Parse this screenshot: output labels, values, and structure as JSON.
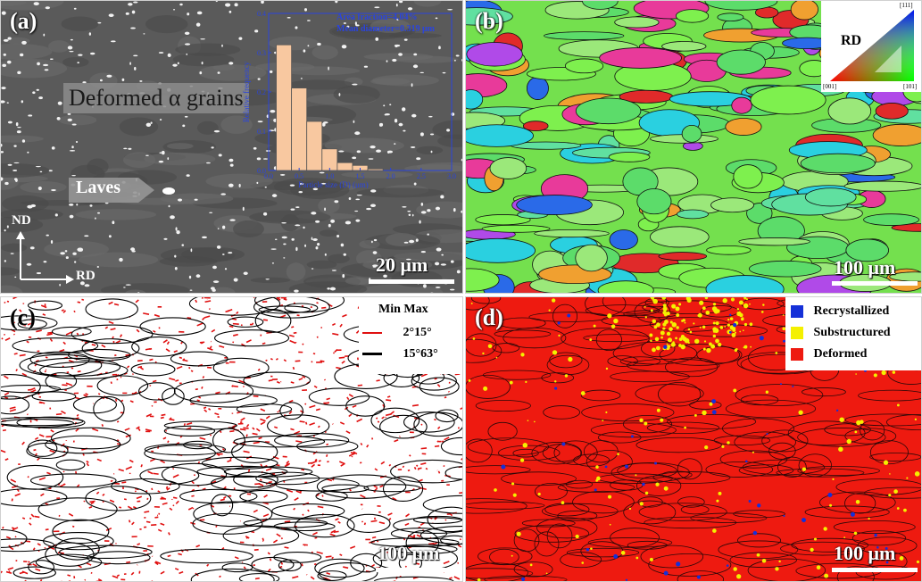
{
  "panels": {
    "a": {
      "label": "(a)",
      "annotation_deformed": "Deformed α grains",
      "annotation_laves": "Laves",
      "axis_nd": "ND",
      "axis_rd": "RD",
      "scale": "20 μm",
      "inset": {
        "area_fraction": "Area fraction=4.04%",
        "mean_diameter": "Mean diameter=0.319 μm",
        "xlabel": "Particle size (D) (μm)",
        "ylabel": "Relative frequency"
      }
    },
    "b": {
      "label": "(b)",
      "ipf_label": "RD",
      "ipf_ticks": [
        "[111]",
        "[001]",
        "[101]"
      ],
      "scale": "100 μm"
    },
    "c": {
      "label": "(c)",
      "legend_header": "Min  Max",
      "legend_rows": [
        {
          "label": "2°15°",
          "color": "#e01010"
        },
        {
          "label": "15°63°",
          "color": "#000000"
        }
      ],
      "scale": "100 μm"
    },
    "d": {
      "label": "(d)",
      "legend": [
        {
          "label": "Recrystallized",
          "color": "#1530d8"
        },
        {
          "label": "Substructured",
          "color": "#f4f000"
        },
        {
          "label": "Deformed",
          "color": "#ee1a10"
        }
      ],
      "scale": "100 μm"
    }
  },
  "chart_data": {
    "type": "bar",
    "title": "",
    "xlabel": "Particle size (D) (μm)",
    "ylabel": "Relative frequency",
    "categories": [
      "0.25",
      "0.50",
      "0.75",
      "1.00",
      "1.25",
      "1.50",
      "1.75"
    ],
    "values": [
      0.32,
      0.21,
      0.125,
      0.055,
      0.02,
      0.013,
      0.004
    ],
    "xlim": [
      0.0,
      3.0
    ],
    "ylim": [
      0.0,
      0.4
    ],
    "xticks": [
      "0.0",
      "0.5",
      "1.0",
      "1.5",
      "2.0",
      "2.5",
      "3.0"
    ],
    "yticks": [
      "0.0",
      "0.1",
      "0.2",
      "0.3",
      "0.4"
    ],
    "bar_color": "#f8c8a0",
    "axis_color": "#2a44dd"
  }
}
